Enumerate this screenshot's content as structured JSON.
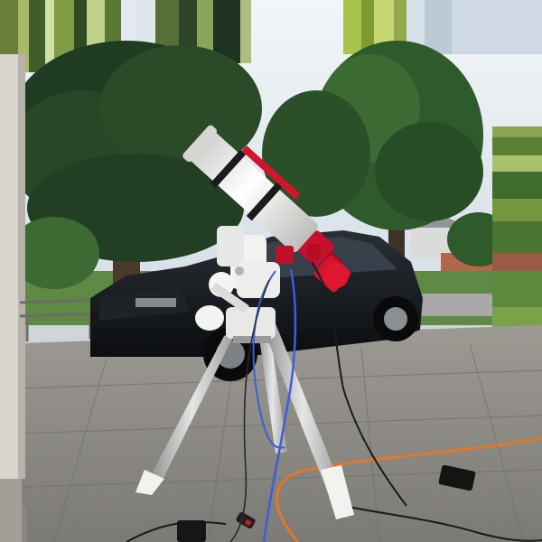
{
  "scene": {
    "subject": "telescope",
    "colors": {
      "sky": "#e6eef3",
      "foliage_dark": "#1f3b22",
      "foliage_mid": "#2f5a2c",
      "foliage_light": "#5f8a45",
      "pavement": "#8e8b86",
      "pavement_light": "#a9a6a0",
      "car": "#111418",
      "tube": "#f1f1ef",
      "accent_red": "#d3142a",
      "cable_blue": "#3a5fd9",
      "cable_orange": "#e0782a",
      "column": "#d8d5cf"
    }
  }
}
